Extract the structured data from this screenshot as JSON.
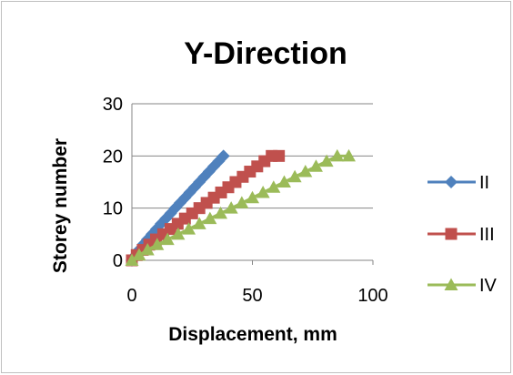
{
  "chart_data": {
    "type": "line",
    "title": "Y-Direction",
    "xlabel": "Displacement, mm",
    "ylabel": "Storey number",
    "xlim": [
      0,
      100
    ],
    "ylim": [
      0,
      30
    ],
    "xticks": [
      "0",
      "50",
      "100"
    ],
    "yticks": [
      "0",
      "10",
      "20",
      "30"
    ],
    "grid": "horizontal",
    "legend": "right",
    "series": [
      {
        "name": "II",
        "color": "#4f81bd",
        "marker": "diamond",
        "x": [
          0,
          1.5,
          3,
          4.6,
          6.4,
          8.3,
          10.2,
          12.1,
          14.1,
          16.1,
          18,
          20,
          22,
          24,
          26,
          28,
          30,
          32,
          34,
          36,
          38
        ],
        "y": [
          0,
          1,
          2,
          3,
          4,
          5,
          6,
          7,
          8,
          9,
          10,
          11,
          12,
          13,
          14,
          15,
          16,
          17,
          18,
          19,
          20
        ]
      },
      {
        "name": "III",
        "color": "#c0504d",
        "marker": "square",
        "x": [
          0,
          2,
          4.5,
          7.2,
          10,
          13,
          16,
          19,
          22,
          25,
          28,
          31,
          34,
          37,
          40,
          43,
          46,
          49,
          52,
          55,
          58,
          61
        ],
        "y": [
          0,
          1,
          2,
          3,
          4,
          5,
          6,
          7,
          8,
          9,
          10,
          11,
          12,
          13,
          14,
          15,
          16,
          17,
          18,
          19,
          20,
          20
        ]
      },
      {
        "name": "IV",
        "color": "#9bbb59",
        "marker": "triangle",
        "x": [
          0,
          3,
          6.5,
          10.5,
          14.8,
          19.2,
          23.6,
          28,
          32.4,
          36.8,
          41.2,
          45.6,
          50,
          54.4,
          58.8,
          63.2,
          67.6,
          72,
          76.4,
          80.8,
          85.2,
          90
        ],
        "y": [
          0,
          1,
          2,
          3,
          4,
          5,
          6,
          7,
          8,
          9,
          10,
          11,
          12,
          13,
          14,
          15,
          16,
          17,
          18,
          19,
          20,
          20
        ]
      }
    ]
  }
}
